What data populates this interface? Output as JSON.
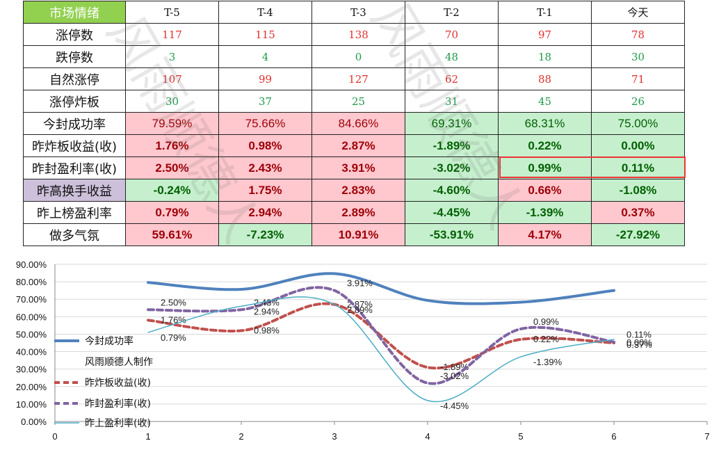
{
  "table": {
    "header_label": "市场情绪",
    "columns": [
      "T-5",
      "T-4",
      "T-3",
      "T-2",
      "T-1",
      "今天"
    ],
    "count_rows": [
      {
        "label": "涨停数",
        "values": [
          "117",
          "115",
          "138",
          "70",
          "97",
          "78"
        ],
        "color": "red"
      },
      {
        "label": "跌停数",
        "values": [
          "3",
          "4",
          "0",
          "48",
          "18",
          "30"
        ],
        "color": "green"
      },
      {
        "label": "自然涨停",
        "values": [
          "107",
          "99",
          "127",
          "62",
          "88",
          "71"
        ],
        "color": "red"
      },
      {
        "label": "涨停炸板",
        "values": [
          "30",
          "37",
          "25",
          "31",
          "45",
          "26"
        ],
        "color": "green"
      }
    ],
    "pct_rows": [
      {
        "label": "今封成功率",
        "values": [
          "79.59%",
          "75.66%",
          "84.66%",
          "69.31%",
          "68.31%",
          "75.00%"
        ],
        "bg": [
          "red",
          "red",
          "red",
          "green",
          "green",
          "green"
        ],
        "bold": false
      },
      {
        "label": "昨炸板收益(收)",
        "values": [
          "1.76%",
          "0.98%",
          "2.87%",
          "-1.89%",
          "0.22%",
          "0.00%"
        ],
        "bg": [
          "red",
          "red",
          "red",
          "green",
          "green",
          "green"
        ],
        "bold": true
      },
      {
        "label": "昨封盈利率(收)",
        "values": [
          "2.50%",
          "2.43%",
          "3.91%",
          "-3.02%",
          "0.99%",
          "0.11%"
        ],
        "bg": [
          "red",
          "red",
          "red",
          "green",
          "green",
          "green"
        ],
        "bold": true
      },
      {
        "label": "昨高换手收益",
        "values": [
          "-0.24%",
          "1.75%",
          "2.83%",
          "-4.60%",
          "0.66%",
          "-1.08%"
        ],
        "bg": [
          "green",
          "red",
          "red",
          "green",
          "red",
          "green"
        ],
        "bold": true,
        "label_bg": "purple"
      },
      {
        "label": "昨上榜盈利率",
        "values": [
          "0.79%",
          "2.94%",
          "2.89%",
          "-4.45%",
          "-1.39%",
          "0.37%"
        ],
        "bg": [
          "red",
          "red",
          "red",
          "green",
          "green",
          "red"
        ],
        "bold": true
      },
      {
        "label": "做多气氛",
        "values": [
          "59.61%",
          "-7.23%",
          "10.91%",
          "-53.91%",
          "4.17%",
          "-27.92%"
        ],
        "bg": [
          "red",
          "green",
          "red",
          "green",
          "red",
          "green"
        ],
        "bold": true
      }
    ]
  },
  "watermark_text": "风雨顺德人",
  "chart_data": {
    "type": "line",
    "x": [
      1,
      2,
      3,
      4,
      5,
      6
    ],
    "xlim": [
      0,
      7
    ],
    "ylim": [
      0,
      90
    ],
    "y_ticks": [
      "0.00%",
      "10.00%",
      "20.00%",
      "30.00%",
      "40.00%",
      "50.00%",
      "60.00%",
      "70.00%",
      "80.00%",
      "90.00%"
    ],
    "x_ticks": [
      "0",
      "1",
      "2",
      "3",
      "4",
      "5",
      "6",
      "7"
    ],
    "grid": true,
    "legend_position": "left",
    "legend_note": "风雨顺德人制作",
    "series": [
      {
        "name": "今封成功率",
        "values": [
          79.59,
          75.66,
          84.66,
          69.31,
          68.31,
          75.0
        ],
        "color": "#4f81bd",
        "dash": "",
        "width": 4,
        "labels": [
          "",
          "",
          "",
          "",
          "",
          ""
        ]
      },
      {
        "name": "昨炸板收益(收)",
        "values": [
          58,
          52,
          67,
          31,
          47,
          45
        ],
        "color": "#c0504d",
        "dash": "8,5",
        "width": 4,
        "labels": [
          "1.76%",
          "0.98%",
          "2.87%",
          "-1.89%",
          "0.22%",
          "0.00%"
        ]
      },
      {
        "name": "昨封盈利率(收)",
        "values": [
          64,
          64,
          75,
          22,
          53,
          45.5
        ],
        "color": "#8064a2",
        "dash": "8,5",
        "width": 4,
        "labels": [
          "2.50%",
          "2.43%",
          "3.91%",
          "-3.02%",
          "0.99%",
          "0.11%"
        ]
      },
      {
        "name": "昨上盈利率(收)",
        "values": [
          51,
          66,
          67,
          12,
          37,
          47
        ],
        "color": "#4bacc6",
        "dash": "",
        "width": 1.5,
        "labels": [
          "0.79%",
          "2.94%",
          "2.89%",
          "-4.45%",
          "-1.39%",
          "0.37%"
        ]
      }
    ]
  }
}
